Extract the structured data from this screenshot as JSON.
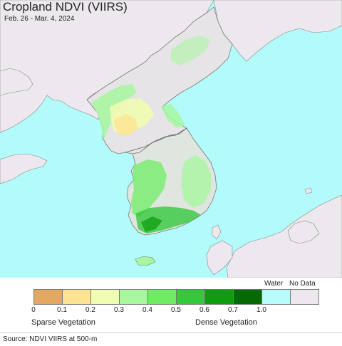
{
  "map": {
    "title": "Cropland NDVI (VIIRS)",
    "subtitle": "Feb. 26 - Mar. 4, 2024",
    "colors": {
      "water": "#b3fbfb",
      "land": "#ece8ed",
      "border": "#7a7a7a"
    }
  },
  "legend": {
    "swatches": [
      {
        "color": "#e2a85f",
        "label": "0"
      },
      {
        "color": "#fde493",
        "label": "0.1"
      },
      {
        "color": "#f0fcb1",
        "label": "0.2"
      },
      {
        "color": "#a6f79d",
        "label": "0.3"
      },
      {
        "color": "#6ded63",
        "label": "0.4"
      },
      {
        "color": "#34c83c",
        "label": "0.5"
      },
      {
        "color": "#0e9d0f",
        "label": "0.6"
      },
      {
        "color": "#036a04",
        "label": "0.7"
      },
      {
        "color": "#b7fbfa",
        "label": "1.0"
      },
      {
        "color": "#ede8ee",
        "label": ""
      }
    ],
    "water_label": "Water",
    "nodata_label": "No Data",
    "sparse_label": "Sparse Vegetation",
    "dense_label": "Dense Vegetation"
  },
  "footer": {
    "source": "Source: NDVI VIIRS at 500-m"
  }
}
